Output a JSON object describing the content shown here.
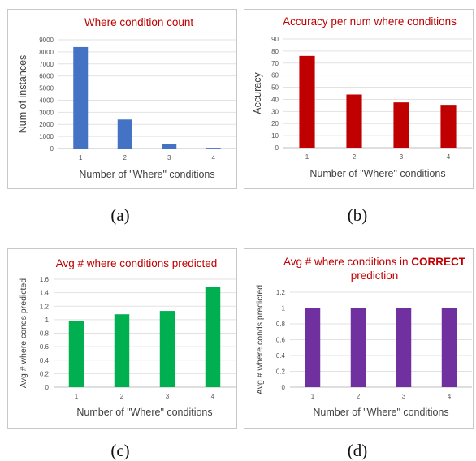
{
  "captions": [
    "(a)",
    "(b)",
    "(c)",
    "(d)"
  ],
  "chart_data": [
    {
      "type": "bar",
      "title": "Where condition count",
      "title_color": "#c00000",
      "xlabel": "Number of \"Where\" conditions",
      "ylabel": "Num of instances",
      "categories": [
        "1",
        "2",
        "3",
        "4"
      ],
      "values": [
        8400,
        2400,
        400,
        60
      ],
      "ylim": [
        0,
        9000
      ],
      "yticks": [
        "0",
        "1000",
        "2000",
        "3000",
        "4000",
        "5000",
        "6000",
        "7000",
        "8000",
        "9000"
      ],
      "color": "#4472c4",
      "grid": true
    },
    {
      "type": "bar",
      "title": "Accuracy per num where conditions",
      "title_color": "#c00000",
      "xlabel": "Number of \"Where\" conditions",
      "ylabel": "Accuracy",
      "categories": [
        "1",
        "2",
        "3",
        "4"
      ],
      "values": [
        76,
        44,
        37.5,
        35.5
      ],
      "ylim": [
        0,
        90
      ],
      "yticks": [
        "0",
        "10",
        "20",
        "30",
        "40",
        "50",
        "60",
        "70",
        "80",
        "90"
      ],
      "color": "#c00000",
      "grid": true
    },
    {
      "type": "bar",
      "title": "Avg # where conditions predicted",
      "title_color": "#c00000",
      "xlabel": "Number of \"Where\" conditions",
      "ylabel": "Avg # where conds predicted",
      "categories": [
        "1",
        "2",
        "3",
        "4"
      ],
      "values": [
        0.98,
        1.08,
        1.13,
        1.48
      ],
      "ylim": [
        0,
        1.6
      ],
      "yticks": [
        "0",
        "0.2",
        "0.4",
        "0.6",
        "0.8",
        "1",
        "1.2",
        "1.4",
        "1.6"
      ],
      "color": "#00b050",
      "grid": true
    },
    {
      "type": "bar",
      "title": "Avg # where conditions in",
      "title_bold": "CORRECT",
      "title_line2": "prediction",
      "title_color": "#c00000",
      "xlabel": "Number of \"Where\" conditions",
      "ylabel": "Avg # where conds predicted",
      "categories": [
        "1",
        "2",
        "3",
        "4"
      ],
      "values": [
        1,
        1,
        1,
        1
      ],
      "ylim": [
        0,
        1.2
      ],
      "yticks": [
        "0",
        "0.2",
        "0.4",
        "0.6",
        "0.8",
        "1",
        "1.2"
      ],
      "color": "#7030a0",
      "grid": true
    }
  ]
}
